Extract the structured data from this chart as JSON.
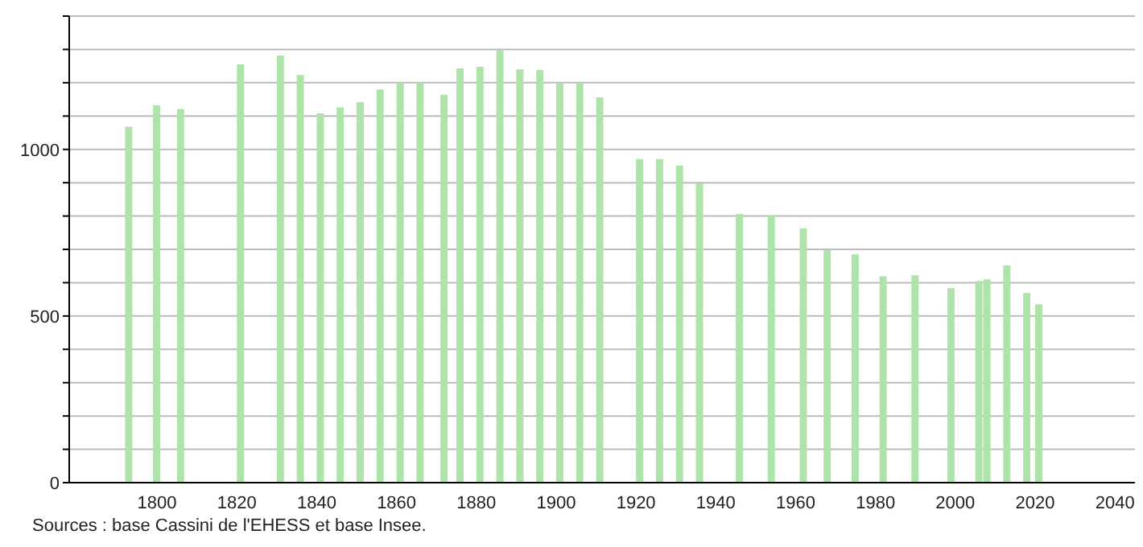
{
  "chart_data": {
    "type": "bar",
    "x": [
      1793,
      1800,
      1806,
      1821,
      1831,
      1836,
      1841,
      1846,
      1851,
      1856,
      1861,
      1866,
      1872,
      1876,
      1881,
      1886,
      1891,
      1896,
      1901,
      1906,
      1911,
      1921,
      1926,
      1931,
      1936,
      1946,
      1954,
      1962,
      1968,
      1975,
      1982,
      1990,
      1999,
      2006,
      2008,
      2013,
      2018,
      2021
    ],
    "values": [
      1068,
      1132,
      1121,
      1255,
      1282,
      1223,
      1108,
      1126,
      1142,
      1180,
      1201,
      1201,
      1164,
      1243,
      1248,
      1298,
      1240,
      1238,
      1198,
      1198,
      1156,
      971,
      971,
      951,
      898,
      806,
      801,
      763,
      698,
      685,
      619,
      622,
      584,
      605,
      610,
      652,
      569,
      535
    ],
    "color": "#aee3aa",
    "xlim": [
      1778,
      2045
    ],
    "xticks": [
      1800,
      1820,
      1840,
      1860,
      1880,
      1900,
      1920,
      1940,
      1960,
      1980,
      2000,
      2020,
      2040
    ],
    "ylim": [
      0,
      1400
    ],
    "yticks": [
      0,
      {
        "value": 100,
        "label": null
      },
      {
        "value": 200,
        "label": null
      },
      {
        "value": 300,
        "label": null
      },
      {
        "value": 400,
        "label": null
      },
      500,
      {
        "value": 600,
        "label": null
      },
      {
        "value": 700,
        "label": null
      },
      {
        "value": 800,
        "label": null
      },
      {
        "value": 900,
        "label": null
      },
      1000,
      {
        "value": 1100,
        "label": null
      },
      {
        "value": 1200,
        "label": null
      },
      {
        "value": 1300,
        "label": null
      },
      {
        "value": 1400,
        "label": null
      }
    ],
    "grid": "y",
    "annotations": [
      "Sources : base Cassini de l'EHESS et base Insee."
    ]
  }
}
